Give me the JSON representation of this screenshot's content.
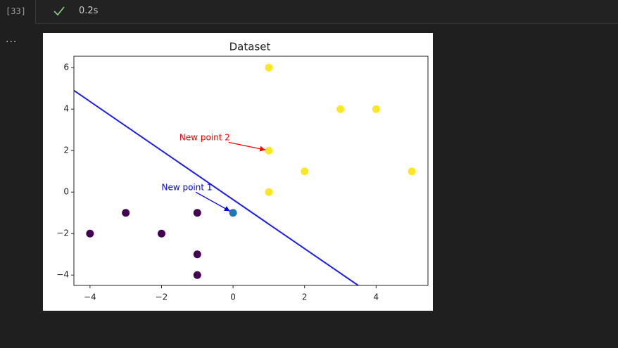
{
  "cell": {
    "number": "[33]",
    "time": "0.2s",
    "menu": "..."
  },
  "chart_data": {
    "type": "scatter",
    "title": "Dataset",
    "xlim": [
      -4.45,
      5.45
    ],
    "ylim": [
      -4.5,
      6.55
    ],
    "xticks": [
      {
        "value": -4,
        "label": "−4"
      },
      {
        "value": -2,
        "label": "−2"
      },
      0,
      2,
      4
    ],
    "yticks": [
      {
        "value": -4,
        "label": "−4"
      },
      {
        "value": -2,
        "label": "−2"
      },
      0,
      2,
      4,
      6
    ],
    "series": [
      {
        "color": "#440154",
        "x": [
          -4,
          -3,
          -2,
          -1,
          -1,
          -1
        ],
        "y": [
          -2,
          -1,
          -2,
          -1,
          -3,
          -4
        ]
      },
      {
        "color": "#fde725",
        "x": [
          1,
          3,
          4,
          1,
          2,
          5,
          1
        ],
        "y": [
          6,
          4,
          4,
          2,
          1,
          1,
          0
        ]
      },
      {
        "color": "#1f77b4",
        "x": [
          0
        ],
        "y": [
          -1
        ]
      }
    ],
    "line": {
      "color": "#1a1aff",
      "x": [
        -4.45,
        3.5
      ],
      "y": [
        4.9,
        -4.5
      ]
    },
    "annotations": [
      {
        "text": "New point 1",
        "color": "#0000ff",
        "xy": [
          0,
          -1
        ],
        "xytext": [
          -2,
          0.1
        ]
      },
      {
        "text": "New point 2",
        "color": "#ff0000",
        "xy": [
          1,
          2
        ],
        "xytext": [
          -1.5,
          2.5
        ]
      }
    ]
  }
}
